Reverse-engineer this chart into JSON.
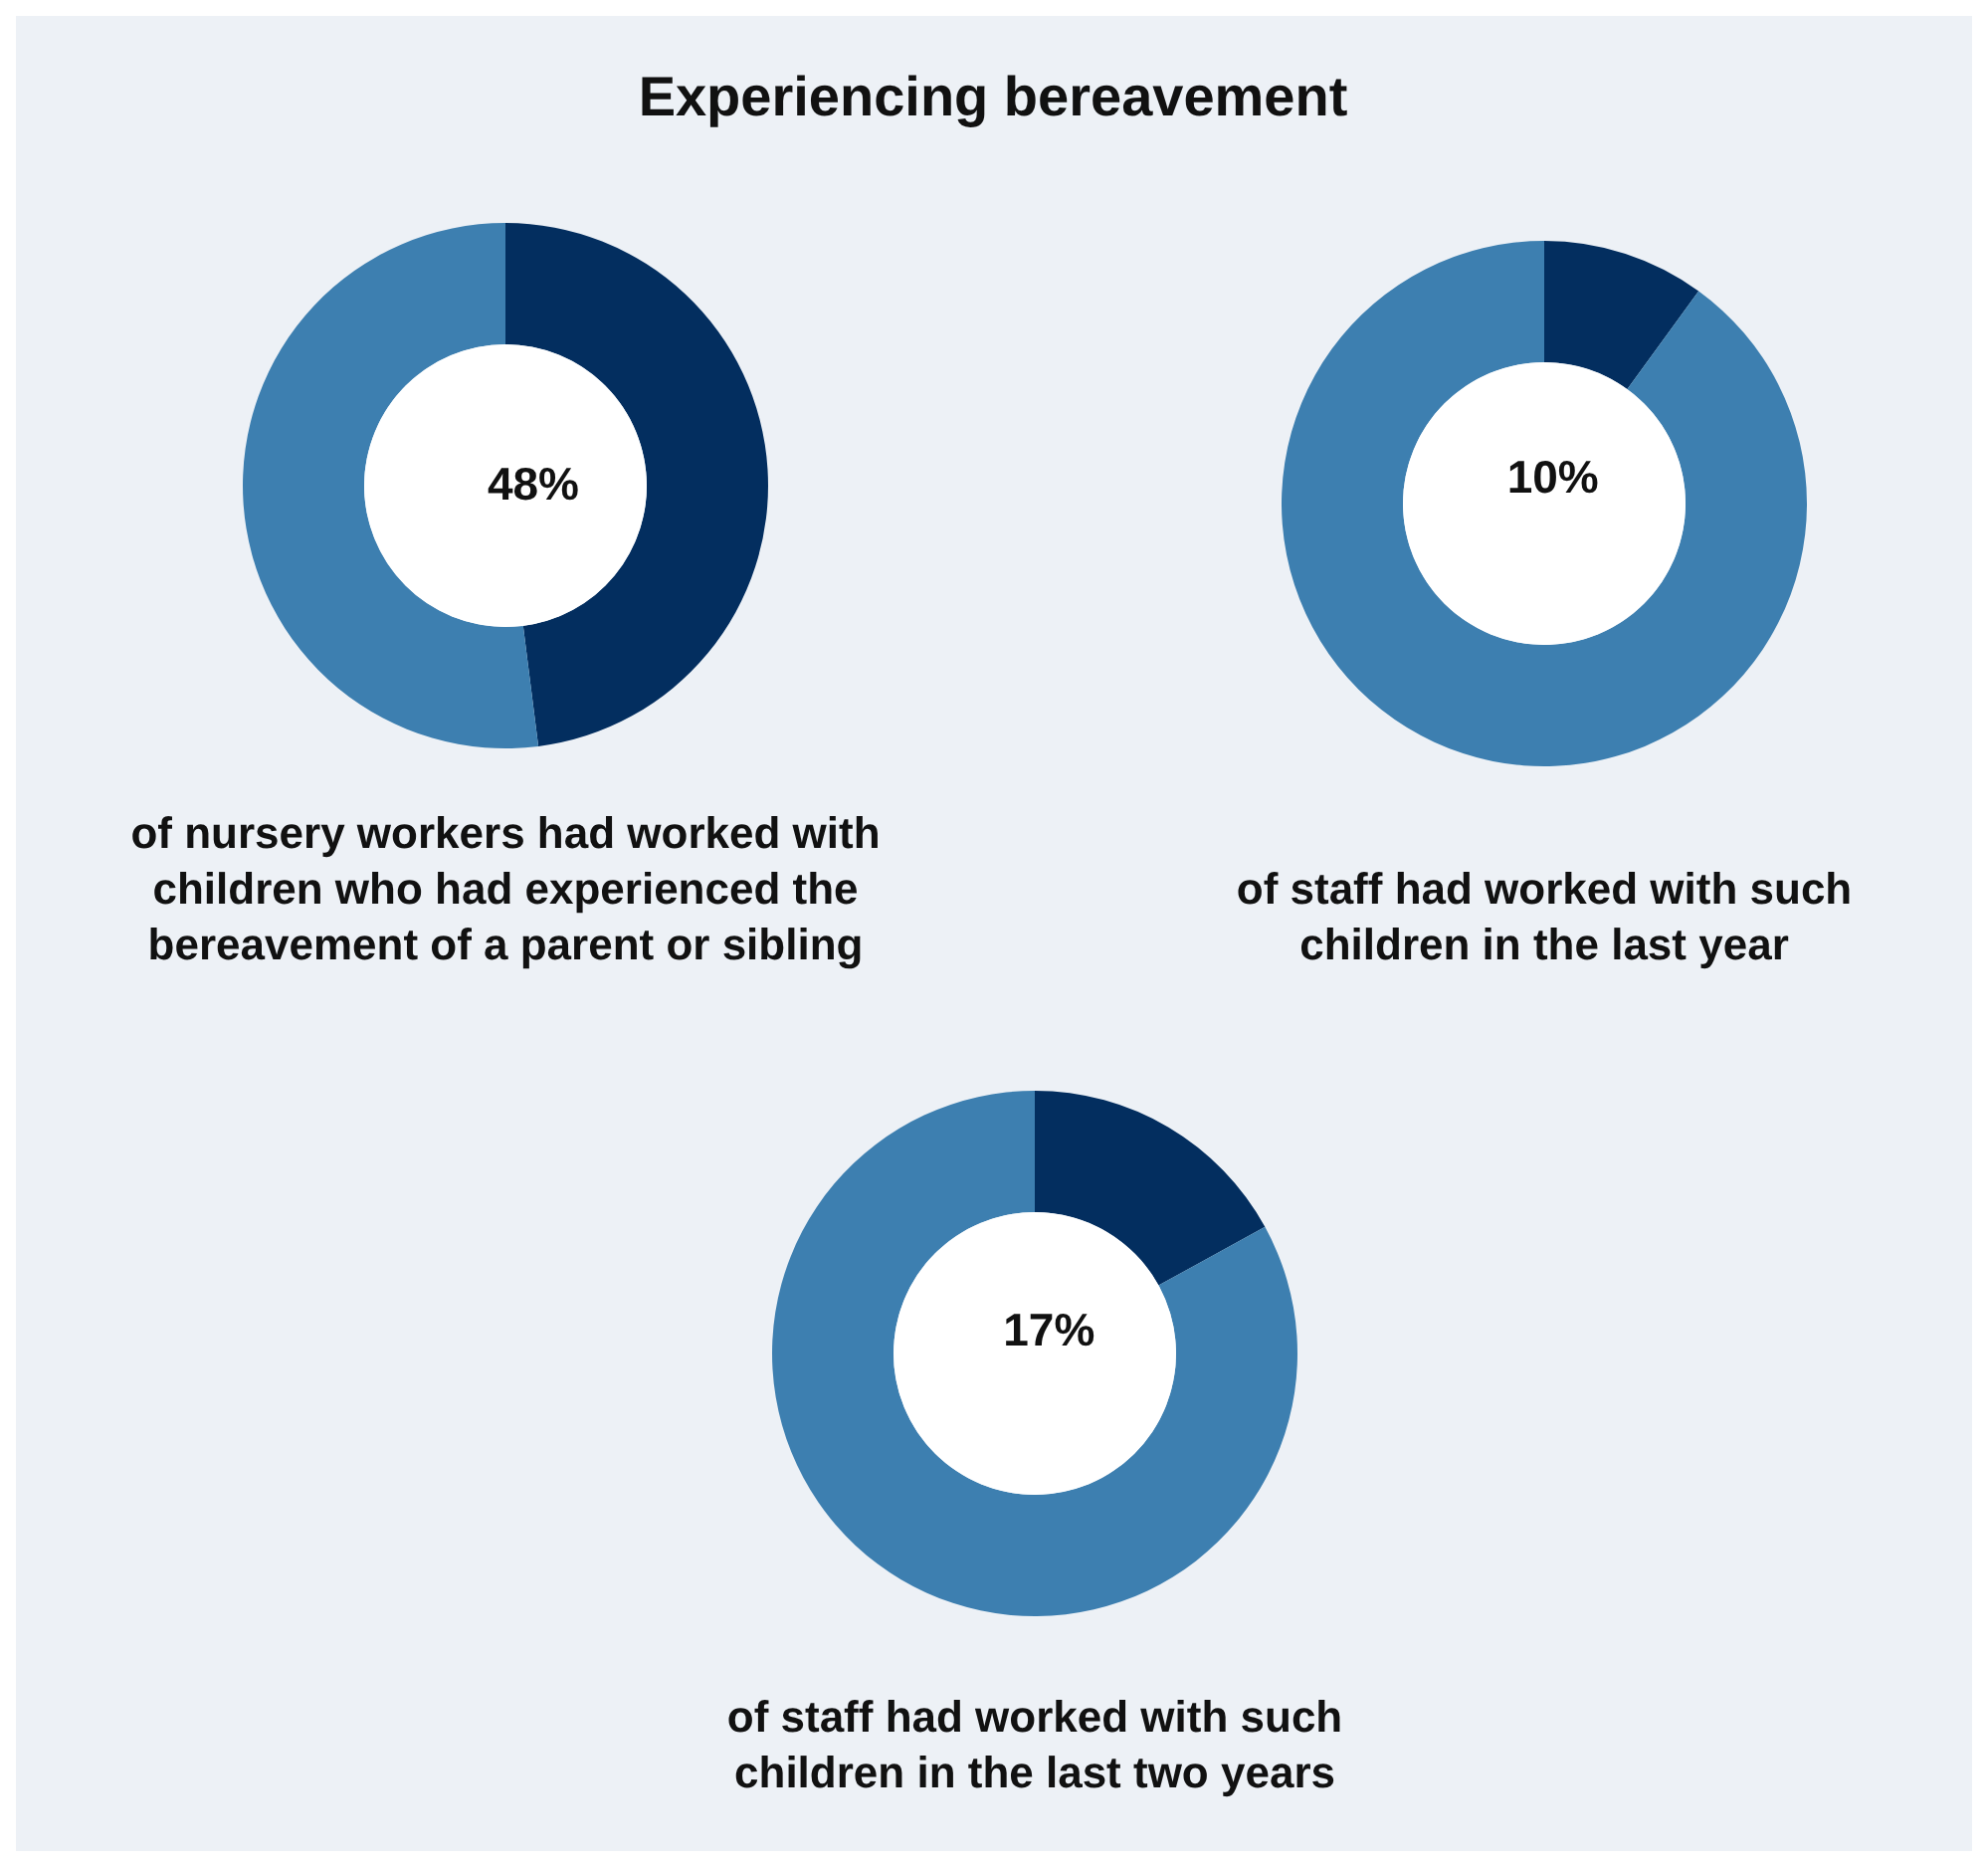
{
  "chart_data": [
    {
      "type": "donut",
      "title": "Experiencing bereavement",
      "categories": [
        null,
        null
      ],
      "values": [
        48,
        52
      ],
      "colors": [
        "#032e5f",
        "#3d7fb0"
      ],
      "value_labels": [
        "48%",
        null
      ],
      "annotations": [
        "of nursery workers had worked with\nchildren who had experienced the\nbereavement of a parent or sibling"
      ]
    },
    {
      "type": "donut",
      "categories": [
        null,
        null
      ],
      "values": [
        10,
        90
      ],
      "colors": [
        "#032e5f",
        "#3d7fb0"
      ],
      "value_labels": [
        "10%",
        null
      ],
      "annotations": [
        "of staff had worked with such\nchildren in the last year"
      ]
    },
    {
      "type": "donut",
      "categories": [
        null,
        null
      ],
      "values": [
        17,
        83
      ],
      "colors": [
        "#032e5f",
        "#3d7fb0"
      ],
      "value_labels": [
        "17%",
        null
      ],
      "annotations": [
        "of staff had worked with such\nchildren in the last two years"
      ]
    }
  ]
}
